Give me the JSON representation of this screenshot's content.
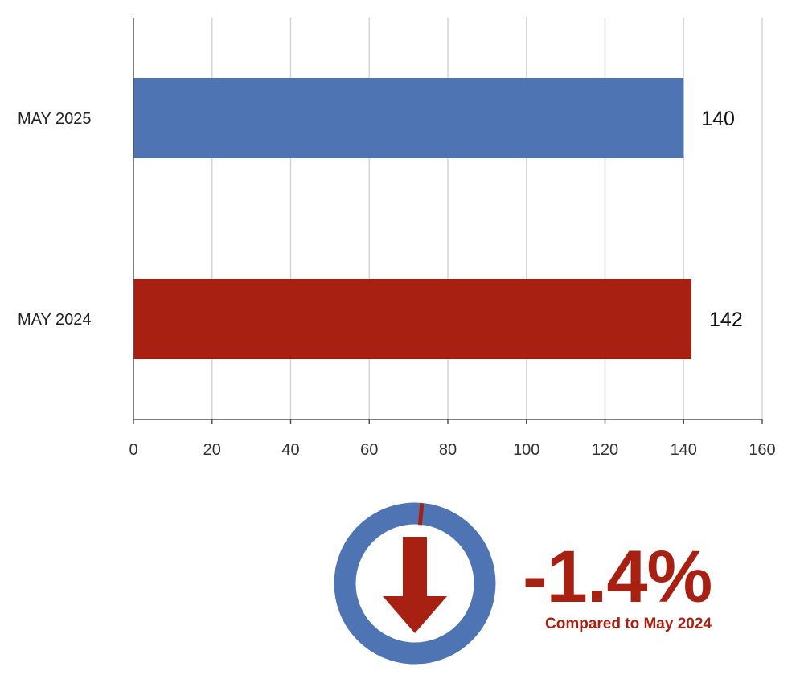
{
  "chart_data": {
    "type": "bar",
    "orientation": "horizontal",
    "categories": [
      "MAY 2025",
      "MAY 2024"
    ],
    "values": [
      140,
      142
    ],
    "bar_colors": [
      "#4e74b3",
      "#a82012"
    ],
    "data_labels": [
      "140",
      "142"
    ],
    "xlim": [
      0,
      160
    ],
    "xticks": [
      0,
      20,
      40,
      60,
      80,
      100,
      120,
      140,
      160
    ],
    "xtick_labels": [
      "0",
      "20",
      "40",
      "60",
      "80",
      "100",
      "120",
      "140",
      "160"
    ],
    "grid": "vertical",
    "legend": "none"
  },
  "summary": {
    "change": "-1.4%",
    "caption": "Compared to May 2024",
    "icon": "down-arrow-icon",
    "ring_color": "#4e74b3",
    "accent_color": "#a82012",
    "ring_marker_fraction": 0.014
  }
}
